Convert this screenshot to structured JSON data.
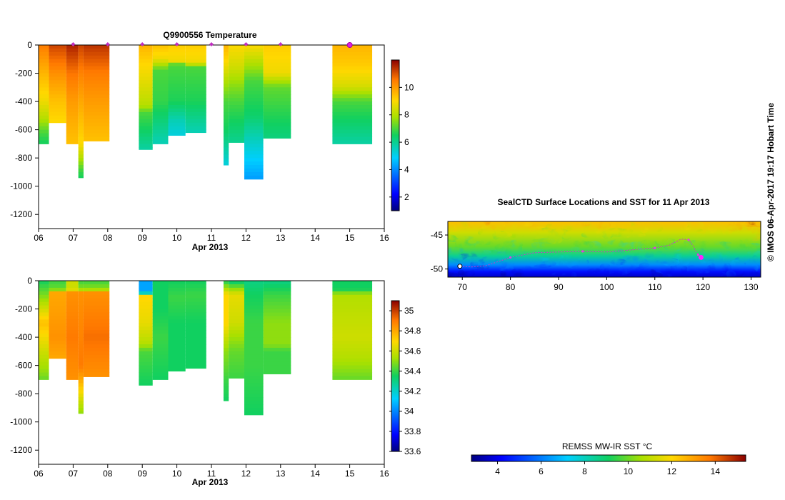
{
  "chart_data": [
    {
      "type": "heatmap",
      "id": "temperature",
      "title": "Q9900556  Temperature",
      "xlabel": "Apr 2013",
      "xlim": [
        6,
        16
      ],
      "x_ticks": [
        "06",
        "07",
        "08",
        "09",
        "10",
        "11",
        "12",
        "13",
        "14",
        "15",
        "16"
      ],
      "ylim": [
        -1300,
        0
      ],
      "y_ticks": [
        0,
        -200,
        -400,
        -600,
        -800,
        -1000,
        -1200
      ],
      "colorbar": {
        "min": 1,
        "max": 12,
        "ticks": [
          2,
          4,
          6,
          8,
          10
        ]
      },
      "profile_markers": [
        7.0,
        8.0,
        9.0,
        10.0,
        11.0,
        12.0,
        13.0
      ],
      "latest_marker": 15.0,
      "columns": [
        {
          "x0": 6.0,
          "x1": 6.3,
          "depth": 700,
          "stops": [
            [
              0,
              10.5
            ],
            [
              200,
              9.6
            ],
            [
              400,
              8.8
            ],
            [
              520,
              8.0
            ],
            [
              620,
              7.0
            ],
            [
              700,
              6.5
            ]
          ]
        },
        {
          "x0": 6.3,
          "x1": 6.8,
          "depth": 550,
          "stops": [
            [
              0,
              11.2
            ],
            [
              200,
              10.2
            ],
            [
              400,
              9.4
            ],
            [
              550,
              9.0
            ]
          ]
        },
        {
          "x0": 6.8,
          "x1": 7.15,
          "depth": 700,
          "stops": [
            [
              0,
              11.6
            ],
            [
              200,
              10.6
            ],
            [
              400,
              10.0
            ],
            [
              700,
              9.4
            ]
          ]
        },
        {
          "x0": 7.15,
          "x1": 7.3,
          "depth": 940,
          "stops": [
            [
              0,
              11.2
            ],
            [
              200,
              10.4
            ],
            [
              400,
              9.8
            ],
            [
              700,
              9.0
            ],
            [
              800,
              8.0
            ],
            [
              880,
              7.0
            ],
            [
              940,
              6.5
            ]
          ]
        },
        {
          "x0": 7.3,
          "x1": 8.05,
          "depth": 680,
          "stops": [
            [
              0,
              11.4
            ],
            [
              200,
              10.5
            ],
            [
              400,
              10.0
            ],
            [
              680,
              9.4
            ]
          ]
        },
        {
          "x0": 8.9,
          "x1": 9.3,
          "depth": 740,
          "stops": [
            [
              0,
              9.6
            ],
            [
              150,
              9.0
            ],
            [
              300,
              8.5
            ],
            [
              430,
              8.0
            ],
            [
              480,
              7.0
            ],
            [
              600,
              6.5
            ],
            [
              740,
              5.8
            ]
          ]
        },
        {
          "x0": 9.3,
          "x1": 9.75,
          "depth": 700,
          "stops": [
            [
              0,
              9.4
            ],
            [
              100,
              8.8
            ],
            [
              180,
              7.0
            ],
            [
              400,
              6.8
            ],
            [
              600,
              6.0
            ],
            [
              700,
              5.6
            ]
          ]
        },
        {
          "x0": 9.75,
          "x1": 10.25,
          "depth": 640,
          "stops": [
            [
              0,
              9.2
            ],
            [
              120,
              8.8
            ],
            [
              140,
              7.0
            ],
            [
              400,
              6.6
            ],
            [
              540,
              5.6
            ],
            [
              640,
              5.2
            ]
          ]
        },
        {
          "x0": 10.25,
          "x1": 10.85,
          "depth": 620,
          "stops": [
            [
              0,
              9.2
            ],
            [
              130,
              8.8
            ],
            [
              150,
              7.0
            ],
            [
              400,
              6.6
            ],
            [
              620,
              5.6
            ]
          ]
        },
        {
          "x0": 11.35,
          "x1": 11.5,
          "depth": 850,
          "stops": [
            [
              0,
              9.6
            ],
            [
              120,
              9.0
            ],
            [
              250,
              8.0
            ],
            [
              400,
              7.0
            ],
            [
              600,
              6.5
            ],
            [
              850,
              5.2
            ]
          ]
        },
        {
          "x0": 11.5,
          "x1": 11.95,
          "depth": 690,
          "stops": [
            [
              0,
              9.0
            ],
            [
              150,
              8.4
            ],
            [
              300,
              7.5
            ],
            [
              400,
              7.0
            ],
            [
              690,
              6.0
            ]
          ]
        },
        {
          "x0": 11.95,
          "x1": 12.5,
          "depth": 950,
          "stops": [
            [
              0,
              9.0
            ],
            [
              100,
              8.2
            ],
            [
              250,
              7.0
            ],
            [
              500,
              6.4
            ],
            [
              700,
              5.4
            ],
            [
              950,
              4.2
            ]
          ]
        },
        {
          "x0": 12.5,
          "x1": 13.3,
          "depth": 660,
          "stops": [
            [
              0,
              9.2
            ],
            [
              200,
              8.8
            ],
            [
              300,
              7.2
            ],
            [
              450,
              6.8
            ],
            [
              660,
              6.2
            ]
          ]
        },
        {
          "x0": 14.5,
          "x1": 15.65,
          "depth": 700,
          "stops": [
            [
              0,
              9.6
            ],
            [
              150,
              9.2
            ],
            [
              300,
              8.4
            ],
            [
              400,
              7.0
            ],
            [
              550,
              6.4
            ],
            [
              700,
              5.8
            ]
          ]
        }
      ]
    },
    {
      "type": "heatmap",
      "id": "salinity",
      "title": "",
      "xlabel": "Apr 2013",
      "xlim": [
        6,
        16
      ],
      "x_ticks": [
        "06",
        "07",
        "08",
        "09",
        "10",
        "11",
        "12",
        "13",
        "14",
        "15",
        "16"
      ],
      "ylim": [
        -1300,
        0
      ],
      "y_ticks": [
        0,
        -200,
        -400,
        -600,
        -800,
        -1000,
        -1200
      ],
      "colorbar": {
        "min": 33.6,
        "max": 35.1,
        "ticks": [
          33.6,
          33.8,
          34,
          34.2,
          34.4,
          34.6,
          34.8,
          35
        ]
      },
      "columns": [
        {
          "x0": 6.0,
          "x1": 6.3,
          "depth": 700,
          "stops": [
            [
              0,
              34.35
            ],
            [
              120,
              34.5
            ],
            [
              300,
              34.75
            ],
            [
              500,
              34.6
            ],
            [
              650,
              34.5
            ],
            [
              700,
              34.45
            ]
          ]
        },
        {
          "x0": 6.3,
          "x1": 6.8,
          "depth": 550,
          "stops": [
            [
              0,
              34.4
            ],
            [
              60,
              34.45
            ],
            [
              80,
              34.8
            ],
            [
              400,
              34.85
            ],
            [
              550,
              34.8
            ]
          ]
        },
        {
          "x0": 6.8,
          "x1": 7.15,
          "depth": 700,
          "stops": [
            [
              0,
              34.6
            ],
            [
              60,
              34.6
            ],
            [
              80,
              34.85
            ],
            [
              400,
              34.9
            ],
            [
              700,
              34.85
            ]
          ]
        },
        {
          "x0": 7.15,
          "x1": 7.3,
          "depth": 940,
          "stops": [
            [
              0,
              34.4
            ],
            [
              60,
              34.5
            ],
            [
              80,
              34.85
            ],
            [
              600,
              34.9
            ],
            [
              700,
              34.8
            ],
            [
              850,
              34.6
            ],
            [
              940,
              34.5
            ]
          ]
        },
        {
          "x0": 7.3,
          "x1": 8.05,
          "depth": 680,
          "stops": [
            [
              0,
              34.4
            ],
            [
              60,
              34.5
            ],
            [
              80,
              34.85
            ],
            [
              400,
              34.92
            ],
            [
              680,
              34.85
            ]
          ]
        },
        {
          "x0": 8.9,
          "x1": 9.3,
          "depth": 740,
          "stops": [
            [
              0,
              34.05
            ],
            [
              80,
              34.05
            ],
            [
              110,
              34.7
            ],
            [
              300,
              34.65
            ],
            [
              450,
              34.55
            ],
            [
              500,
              34.42
            ],
            [
              740,
              34.35
            ]
          ]
        },
        {
          "x0": 9.3,
          "x1": 9.75,
          "depth": 700,
          "stops": [
            [
              0,
              34.35
            ],
            [
              200,
              34.35
            ],
            [
              400,
              34.4
            ],
            [
              700,
              34.35
            ]
          ]
        },
        {
          "x0": 9.75,
          "x1": 10.25,
          "depth": 640,
          "stops": [
            [
              0,
              34.35
            ],
            [
              120,
              34.4
            ],
            [
              300,
              34.35
            ],
            [
              640,
              34.35
            ]
          ]
        },
        {
          "x0": 10.25,
          "x1": 10.85,
          "depth": 620,
          "stops": [
            [
              0,
              34.35
            ],
            [
              100,
              34.4
            ],
            [
              300,
              34.35
            ],
            [
              620,
              34.35
            ]
          ]
        },
        {
          "x0": 11.35,
          "x1": 11.5,
          "depth": 850,
          "stops": [
            [
              0,
              34.35
            ],
            [
              100,
              34.7
            ],
            [
              300,
              34.7
            ],
            [
              500,
              34.5
            ],
            [
              700,
              34.4
            ],
            [
              850,
              34.35
            ]
          ]
        },
        {
          "x0": 11.5,
          "x1": 11.95,
          "depth": 690,
          "stops": [
            [
              0,
              34.3
            ],
            [
              100,
              34.65
            ],
            [
              300,
              34.6
            ],
            [
              500,
              34.45
            ],
            [
              690,
              34.4
            ]
          ]
        },
        {
          "x0": 11.95,
          "x1": 12.5,
          "depth": 950,
          "stops": [
            [
              0,
              34.3
            ],
            [
              100,
              34.35
            ],
            [
              300,
              34.4
            ],
            [
              600,
              34.4
            ],
            [
              950,
              34.35
            ]
          ]
        },
        {
          "x0": 12.5,
          "x1": 13.3,
          "depth": 660,
          "stops": [
            [
              0,
              34.3
            ],
            [
              100,
              34.4
            ],
            [
              300,
              34.5
            ],
            [
              450,
              34.5
            ],
            [
              500,
              34.4
            ],
            [
              660,
              34.4
            ]
          ]
        },
        {
          "x0": 14.5,
          "x1": 15.65,
          "depth": 700,
          "stops": [
            [
              0,
              34.35
            ],
            [
              60,
              34.35
            ],
            [
              100,
              34.55
            ],
            [
              400,
              34.6
            ],
            [
              550,
              34.55
            ],
            [
              700,
              34.45
            ]
          ]
        }
      ]
    },
    {
      "type": "heatmap",
      "id": "sst-map",
      "title": "SealCTD Surface Locations and SST for 11 Apr 2013",
      "xlim": [
        67,
        132
      ],
      "x_ticks": [
        70,
        80,
        90,
        100,
        110,
        120,
        130
      ],
      "ylim": [
        -51.2,
        -43
      ],
      "y_ticks": [
        -45,
        -50
      ],
      "colorbar": {
        "label": "REMSS MW-IR SST °C",
        "min": 2.8,
        "max": 15.4,
        "ticks": [
          4,
          6,
          8,
          10,
          12,
          14
        ]
      },
      "track": [
        [
          69.5,
          -49.6
        ],
        [
          72,
          -49.7
        ],
        [
          75,
          -49.5
        ],
        [
          80,
          -48.3
        ],
        [
          85,
          -47.6
        ],
        [
          90,
          -47.5
        ],
        [
          95,
          -47.4
        ],
        [
          100,
          -47.5
        ],
        [
          105,
          -47.2
        ],
        [
          110,
          -46.9
        ],
        [
          113,
          -46.5
        ],
        [
          115.5,
          -45.6
        ],
        [
          117,
          -45.7
        ],
        [
          118,
          -46.6
        ],
        [
          118.5,
          -47.4
        ],
        [
          119,
          -47.9
        ],
        [
          119.5,
          -48.2
        ]
      ],
      "last_position": [
        119.6,
        -48.3
      ]
    }
  ],
  "footer": {
    "credit": "© IMOS 06-Apr-2017 19:17 Hobart Time"
  }
}
